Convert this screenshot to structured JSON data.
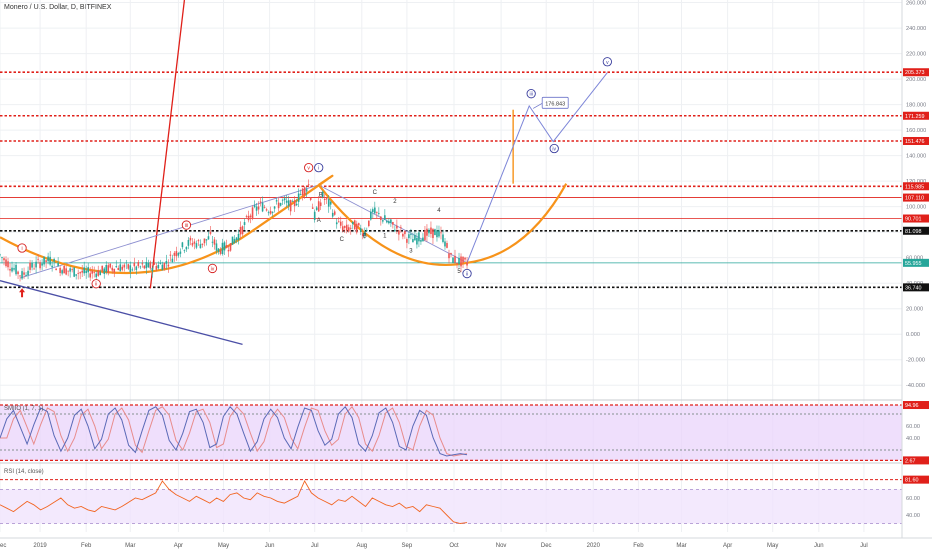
{
  "header": {
    "symbol_title": "Monero / U.S. Dollar, D, BITFINEX"
  },
  "chart_data": [
    {
      "type": "line",
      "title": "Monero / U.S. Dollar, D, BITFINEX",
      "ylim": [
        -50,
        262
      ],
      "y_ticks": [
        {
          "value": 260,
          "label": "260.000"
        },
        {
          "value": 240,
          "label": "240.000"
        },
        {
          "value": 220,
          "label": "220.000"
        },
        {
          "value": 200,
          "label": "200.000"
        },
        {
          "value": 180,
          "label": "180.000"
        },
        {
          "value": 160,
          "label": "160.000"
        },
        {
          "value": 140,
          "label": "140.000"
        },
        {
          "value": 120,
          "label": "120.000"
        },
        {
          "value": 100,
          "label": "100.000"
        },
        {
          "value": 80,
          "label": "80.000"
        },
        {
          "value": 60,
          "label": "60.000"
        },
        {
          "value": 40,
          "label": "40.000"
        },
        {
          "value": 20,
          "label": "20.000"
        },
        {
          "value": 0,
          "label": "0.000"
        },
        {
          "value": -20,
          "label": "-20.000"
        },
        {
          "value": -40,
          "label": "-40.000"
        }
      ],
      "x_ticks": [
        {
          "index": 0,
          "label": "ec"
        },
        {
          "index": 40,
          "label": "2019"
        },
        {
          "index": 86,
          "label": "Feb"
        },
        {
          "index": 130,
          "label": "Mar"
        },
        {
          "index": 178,
          "label": "Apr"
        },
        {
          "index": 223,
          "label": "May"
        },
        {
          "index": 269,
          "label": "Jun"
        },
        {
          "index": 314,
          "label": "Jul"
        },
        {
          "index": 361,
          "label": "Aug"
        },
        {
          "index": 406,
          "label": "Sep"
        },
        {
          "index": 453,
          "label": "Oct"
        },
        {
          "index": 500,
          "label": "Nov"
        },
        {
          "index": 545,
          "label": "Dec"
        },
        {
          "index": 592,
          "label": "2020"
        },
        {
          "index": 637,
          "label": "Feb"
        },
        {
          "index": 680,
          "label": "Mar"
        },
        {
          "index": 726,
          "label": "Apr"
        },
        {
          "index": 771,
          "label": "May"
        },
        {
          "index": 817,
          "label": "Jun"
        },
        {
          "index": 862,
          "label": "Jul"
        }
      ],
      "price_series": [
        {
          "x": 0,
          "y": 62
        },
        {
          "x": 10,
          "y": 54
        },
        {
          "x": 22,
          "y": 46
        },
        {
          "x": 30,
          "y": 52
        },
        {
          "x": 40,
          "y": 56
        },
        {
          "x": 50,
          "y": 58
        },
        {
          "x": 60,
          "y": 52
        },
        {
          "x": 72,
          "y": 49
        },
        {
          "x": 86,
          "y": 48
        },
        {
          "x": 100,
          "y": 49
        },
        {
          "x": 115,
          "y": 53
        },
        {
          "x": 130,
          "y": 52
        },
        {
          "x": 150,
          "y": 53
        },
        {
          "x": 165,
          "y": 55
        },
        {
          "x": 178,
          "y": 66
        },
        {
          "x": 190,
          "y": 72
        },
        {
          "x": 200,
          "y": 71
        },
        {
          "x": 210,
          "y": 76
        },
        {
          "x": 218,
          "y": 66
        },
        {
          "x": 230,
          "y": 70
        },
        {
          "x": 240,
          "y": 80
        },
        {
          "x": 250,
          "y": 94
        },
        {
          "x": 260,
          "y": 101
        },
        {
          "x": 270,
          "y": 98
        },
        {
          "x": 282,
          "y": 104
        },
        {
          "x": 292,
          "y": 100
        },
        {
          "x": 302,
          "y": 112
        },
        {
          "x": 308,
          "y": 117
        },
        {
          "x": 314,
          "y": 92
        },
        {
          "x": 322,
          "y": 108
        },
        {
          "x": 330,
          "y": 100
        },
        {
          "x": 338,
          "y": 86
        },
        {
          "x": 346,
          "y": 82
        },
        {
          "x": 354,
          "y": 85
        },
        {
          "x": 364,
          "y": 80
        },
        {
          "x": 372,
          "y": 96
        },
        {
          "x": 380,
          "y": 92
        },
        {
          "x": 390,
          "y": 86
        },
        {
          "x": 398,
          "y": 82
        },
        {
          "x": 406,
          "y": 76
        },
        {
          "x": 414,
          "y": 74
        },
        {
          "x": 424,
          "y": 78
        },
        {
          "x": 434,
          "y": 80
        },
        {
          "x": 442,
          "y": 76
        },
        {
          "x": 450,
          "y": 60
        },
        {
          "x": 458,
          "y": 57
        },
        {
          "x": 466,
          "y": 56
        }
      ],
      "projection_path": [
        {
          "x": 466,
          "y": 55.95
        },
        {
          "x": 528,
          "y": 179
        },
        {
          "x": 552,
          "y": 151
        },
        {
          "x": 606,
          "y": 205
        }
      ],
      "horizontal_levels": [
        {
          "value": 205.373,
          "label": "205.373",
          "color": "#e0201a",
          "style": "dotted"
        },
        {
          "value": 171.259,
          "label": "171.259",
          "color": "#e0201a",
          "style": "dotted"
        },
        {
          "value": 151.476,
          "label": "151.476",
          "color": "#e0201a",
          "style": "dotted"
        },
        {
          "value": 115.985,
          "label": "115.985",
          "color": "#e0201a",
          "style": "dotted"
        },
        {
          "value": 107.11,
          "label": "107.110",
          "color": "#e0201a",
          "style": "solid-thin"
        },
        {
          "value": 90.701,
          "label": "90.701",
          "color": "#e0201a",
          "style": "solid-thin"
        },
        {
          "value": 81.098,
          "label": "81.098",
          "color": "#111111",
          "style": "dotted"
        },
        {
          "value": 55.955,
          "label": "55.955",
          "color": "#26a69a",
          "style": "solid-thin"
        },
        {
          "value": 36.74,
          "label": "36.740",
          "color": "#111111",
          "style": "dotted"
        }
      ],
      "price_callout": "176.843",
      "wave_labels": [
        {
          "text": "i",
          "x": 22,
          "y": 66,
          "style": "circle-red"
        },
        {
          "text": "ii",
          "x": 96,
          "y": 38,
          "style": "circle-red"
        },
        {
          "text": "iii",
          "x": 186,
          "y": 84,
          "style": "circle-red"
        },
        {
          "text": "iv",
          "x": 212,
          "y": 50,
          "style": "circle-red"
        },
        {
          "text": "v",
          "x": 308,
          "y": 129,
          "style": "circle-red"
        },
        {
          "text": "i",
          "x": 318,
          "y": 129,
          "style": "circle-blue"
        },
        {
          "text": "A",
          "x": 318,
          "y": 88,
          "style": "plain"
        },
        {
          "text": "B",
          "x": 320,
          "y": 108,
          "style": "plain"
        },
        {
          "text": "C",
          "x": 341,
          "y": 73,
          "style": "plain"
        },
        {
          "text": "B",
          "x": 364,
          "y": 76,
          "style": "plain"
        },
        {
          "text": "C",
          "x": 374,
          "y": 110,
          "style": "plain"
        },
        {
          "text": "2",
          "x": 394,
          "y": 103,
          "style": "plain"
        },
        {
          "text": "1",
          "x": 384,
          "y": 76,
          "style": "plain"
        },
        {
          "text": "4",
          "x": 438,
          "y": 96,
          "style": "plain"
        },
        {
          "text": "3",
          "x": 410,
          "y": 64,
          "style": "plain"
        },
        {
          "text": "5",
          "x": 458,
          "y": 48,
          "style": "plain"
        },
        {
          "text": "ii",
          "x": 466,
          "y": 46,
          "style": "circle-blue"
        },
        {
          "text": "iii",
          "x": 530,
          "y": 187,
          "style": "circle-blue"
        },
        {
          "text": "iv",
          "x": 553,
          "y": 144,
          "style": "circle-blue"
        },
        {
          "text": "v",
          "x": 606,
          "y": 212,
          "style": "circle-blue"
        }
      ]
    },
    {
      "type": "line",
      "title": "",
      "indicator_label": "SMIIO (1, 7, 1)",
      "ylim": [
        0,
        100
      ],
      "y_ticks": [
        {
          "value": 94.96,
          "label": "94.96",
          "color": "#e0201a"
        },
        {
          "value": 60,
          "label": "60.00",
          "color": "#9aa0a6"
        },
        {
          "value": 40,
          "label": "40.00",
          "color": "#9aa0a6"
        },
        {
          "value": 2.67,
          "label": "2.67",
          "color": "#e0201a"
        }
      ],
      "levels": [
        94.96,
        80,
        20,
        2.67
      ],
      "series": [
        {
          "values": [
            40,
            72,
            86,
            58,
            30,
            62,
            90,
            84,
            44,
            18,
            40,
            78,
            88,
            60,
            22,
            38,
            80,
            90,
            70,
            28,
            16,
            52,
            86,
            92,
            78,
            36,
            20,
            48,
            84,
            88,
            66,
            24,
            30,
            76,
            92,
            80,
            48,
            18,
            34,
            72,
            88,
            74,
            40,
            22,
            58,
            90,
            86,
            52,
            28,
            38,
            80,
            92,
            74,
            30,
            18,
            44,
            82,
            90,
            66,
            26,
            20,
            60,
            86,
            78,
            40,
            14,
            10,
            12,
            14,
            12
          ]
        }
      ]
    },
    {
      "type": "line",
      "title": "",
      "indicator_label": "RSI (14, close)",
      "ylim": [
        20,
        100
      ],
      "y_ticks": [
        {
          "value": 81.6,
          "label": "81.60",
          "color": "#e0201a"
        },
        {
          "value": 60,
          "label": "60.00",
          "color": "#9aa0a6"
        },
        {
          "value": 40,
          "label": "40.00",
          "color": "#9aa0a6"
        }
      ],
      "series": [
        {
          "values": [
            52,
            48,
            44,
            50,
            56,
            52,
            46,
            50,
            55,
            60,
            52,
            48,
            50,
            46,
            44,
            50,
            48,
            46,
            50,
            55,
            60,
            58,
            62,
            66,
            80,
            70,
            64,
            60,
            56,
            62,
            58,
            54,
            60,
            56,
            64,
            66,
            60,
            58,
            66,
            62,
            60,
            56,
            54,
            58,
            62,
            80,
            66,
            60,
            56,
            52,
            58,
            56,
            62,
            56,
            50,
            60,
            56,
            52,
            50,
            54,
            48,
            50,
            44,
            52,
            50,
            48,
            40,
            32,
            30,
            31
          ]
        }
      ]
    }
  ],
  "colors": {
    "bull_candle": "#26a69a",
    "bear_candle": "#ef5350",
    "bowl_curve": "#f7931a",
    "trendline_blue": "#4b4fa6",
    "red_line": "#e0201a",
    "level_red": "#e0201a"
  }
}
